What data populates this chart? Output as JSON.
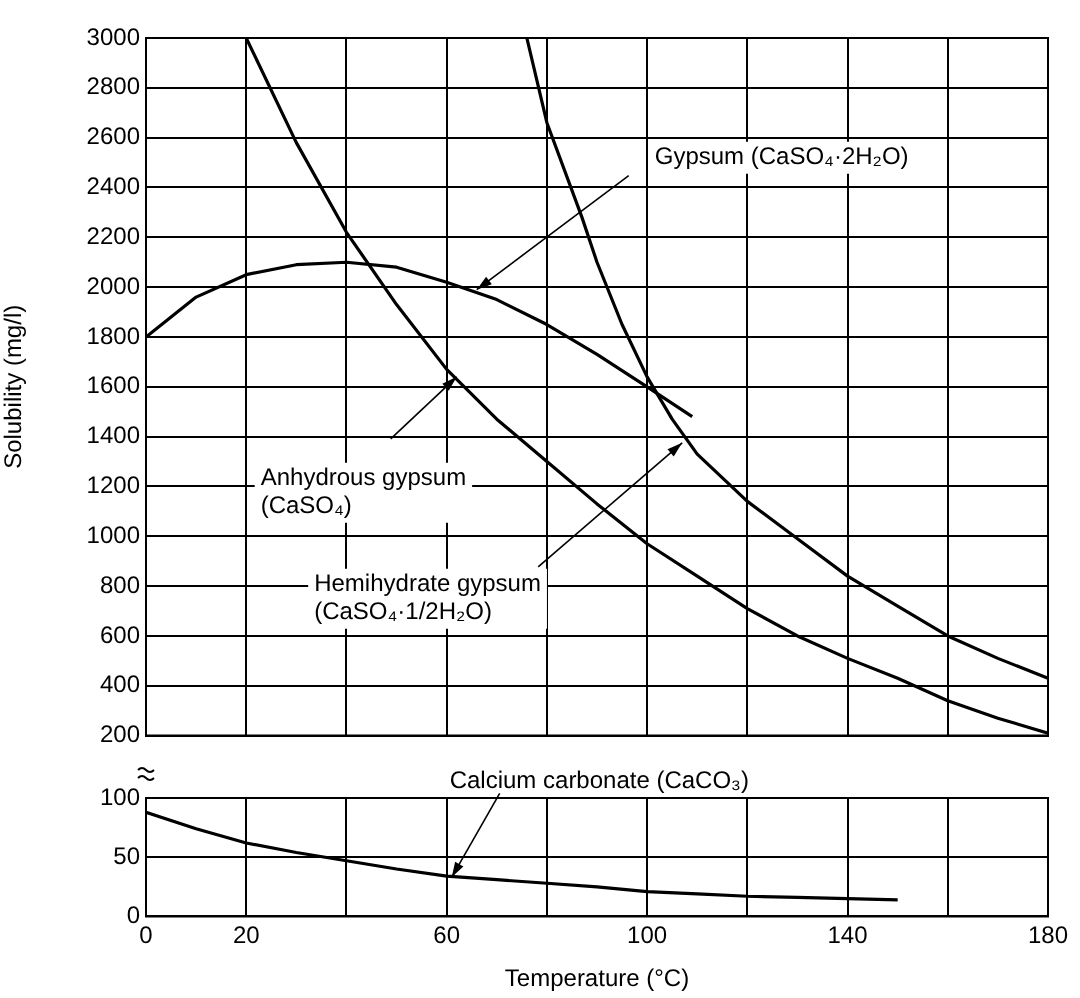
{
  "chart_data": [
    {
      "type": "line",
      "ylabel": "Solubility (mg/l)",
      "xlim": [
        0,
        180
      ],
      "xticks": [
        0,
        20,
        {
          "value": 40,
          "label": null
        },
        60,
        {
          "value": 80,
          "label": null
        },
        100,
        {
          "value": 120,
          "label": null
        },
        140,
        {
          "value": 160,
          "label": null
        },
        180
      ],
      "ylim": [
        200,
        3000
      ],
      "yticks": [
        200,
        400,
        600,
        800,
        1000,
        1200,
        1400,
        1600,
        1800,
        2000,
        2200,
        2400,
        2600,
        2800,
        3000
      ],
      "grid": true,
      "tick_labels": "y",
      "marker": "none",
      "series": [
        {
          "color": "#000000",
          "x": [
            0,
            10,
            20,
            30,
            40,
            50,
            60,
            70,
            80,
            90,
            100,
            109
          ],
          "values": [
            1800,
            1960,
            2050,
            2090,
            2100,
            2080,
            2020,
            1950,
            1850,
            1730,
            1600,
            1480
          ]
        },
        {
          "color": "#000000",
          "x": [
            20,
            30,
            40,
            50,
            60,
            70,
            80,
            90,
            100,
            110,
            120,
            130,
            140,
            150,
            160,
            170,
            180
          ],
          "values": [
            3000,
            2580,
            2220,
            1930,
            1670,
            1470,
            1300,
            1130,
            970,
            840,
            710,
            600,
            510,
            430,
            340,
            270,
            210
          ]
        },
        {
          "color": "#000000",
          "x": [
            76,
            80,
            87,
            90,
            95,
            100,
            105,
            110,
            120,
            130,
            140,
            150,
            160,
            170,
            180
          ],
          "values": [
            3000,
            2660,
            2280,
            2100,
            1850,
            1640,
            1470,
            1330,
            1140,
            990,
            840,
            720,
            600,
            510,
            430
          ]
        }
      ],
      "annotations": [
        {
          "text": "Gypsum (CaSO₄·2H₂O)",
          "x": 66,
          "y": 1990
        },
        {
          "text": "Anhydrous gypsum\n(CaSO₄)",
          "x": 62,
          "y": 1640
        },
        {
          "text": "Hemihydrate gypsum\n(CaSO₄·1/2H₂O)",
          "x": 107,
          "y": 1375
        }
      ]
    },
    {
      "type": "line",
      "xlabel": "Temperature (°C)",
      "xlim": [
        0,
        180
      ],
      "xticks": [
        0,
        20,
        {
          "value": 40,
          "label": null
        },
        60,
        {
          "value": 80,
          "label": null
        },
        100,
        {
          "value": 120,
          "label": null
        },
        140,
        {
          "value": 160,
          "label": null
        },
        180
      ],
      "ylim": [
        0,
        100
      ],
      "yticks": [
        0,
        50,
        100
      ],
      "grid": true,
      "marker": "none",
      "series": [
        {
          "color": "#000000",
          "x": [
            0,
            10,
            20,
            30,
            40,
            50,
            60,
            70,
            80,
            90,
            100,
            110,
            120,
            130,
            140,
            150
          ],
          "values": [
            88,
            74,
            62,
            54,
            47,
            40,
            34,
            31,
            28,
            25,
            21,
            19,
            17,
            16,
            15,
            14
          ]
        }
      ],
      "annotations": [
        {
          "text": "Calcium carbonate (CaCO₃)",
          "x": 61,
          "y": 33
        }
      ]
    }
  ]
}
